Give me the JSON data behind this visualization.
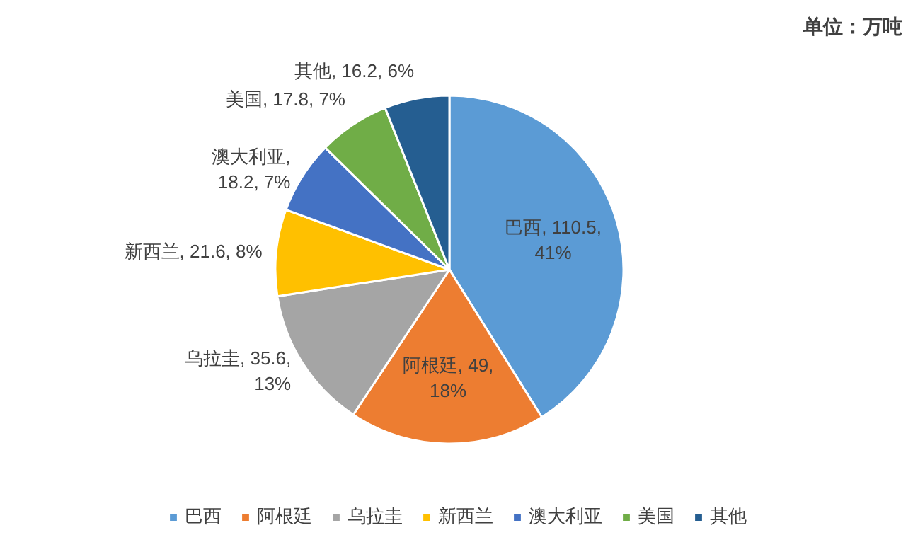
{
  "chart_data": {
    "type": "pie",
    "categories": [
      "巴西",
      "阿根廷",
      "乌拉圭",
      "新西兰",
      "澳大利亚",
      "美国",
      "其他"
    ],
    "values": [
      110.5,
      49,
      35.6,
      21.6,
      18.2,
      17.8,
      16.2
    ],
    "colors": [
      "#5b9bd5",
      "#ed7d31",
      "#a5a5a5",
      "#ffc000",
      "#4472c4",
      "#70ad47",
      "#255e91"
    ],
    "value_labels": [
      "巴西, 110.5,\n41%",
      "阿根廷, 49,\n18%",
      "乌拉圭, 35.6,\n13%",
      "新西兰, 21.6, 8%",
      "澳大利亚,\n18.2, 7%",
      "美国, 17.8, 7%",
      "其他, 16.2, 6%"
    ],
    "annotations": [
      "单位：万吨"
    ],
    "legend": "bottom"
  }
}
